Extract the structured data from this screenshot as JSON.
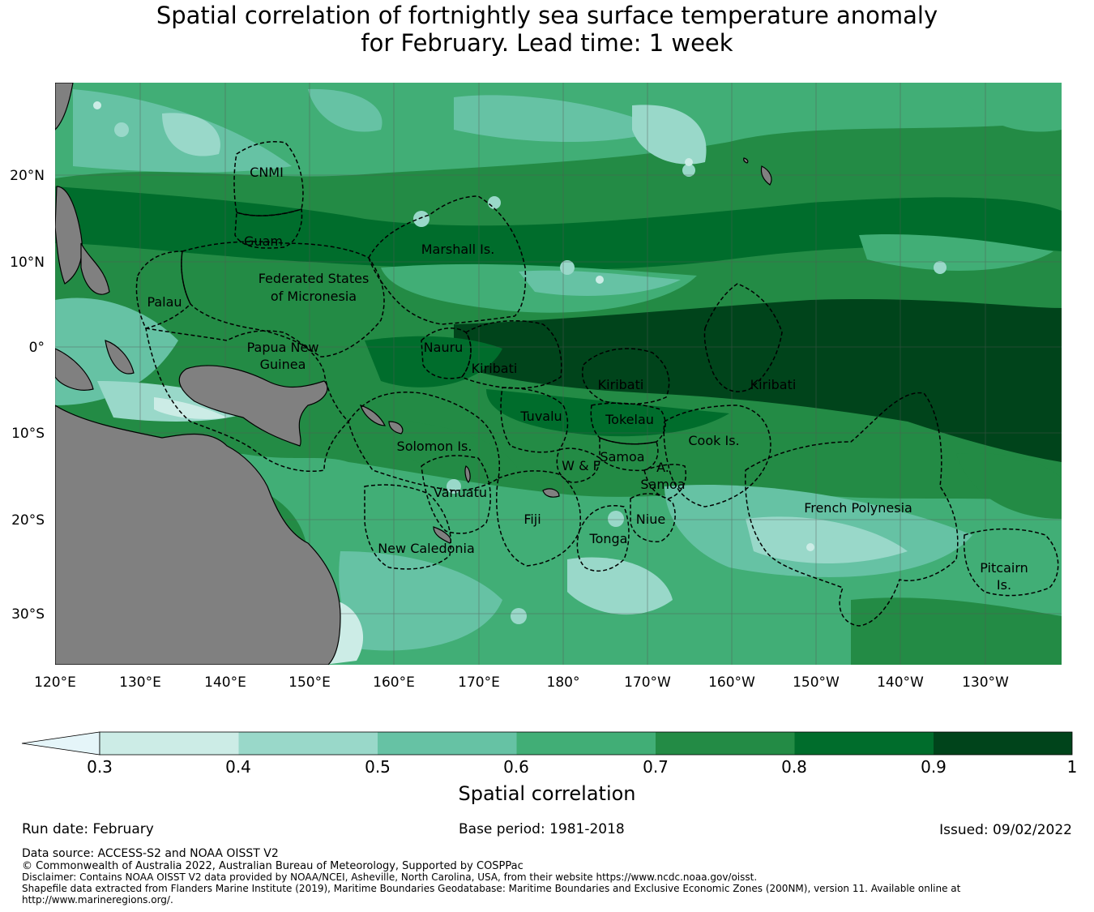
{
  "title": {
    "line1": "Spatial correlation of fortnightly sea surface temperature anomaly",
    "line2": "for February. Lead time: 1 week"
  },
  "map": {
    "lon_labels": [
      "120°E",
      "130°E",
      "140°E",
      "150°E",
      "160°E",
      "170°E",
      "180°",
      "170°W",
      "160°W",
      "150°W",
      "140°W",
      "130°W"
    ],
    "lat_labels": [
      "20°N",
      "10°N",
      "0°",
      "10°S",
      "20°S",
      "30°S"
    ],
    "land_color": "#808080",
    "regions": [
      {
        "id": "cnmi",
        "name": "CNMI"
      },
      {
        "id": "guam",
        "name": "Guam"
      },
      {
        "id": "marshall",
        "name": "Marshall Is."
      },
      {
        "id": "fsm",
        "name": "Federated States of Micronesia",
        "line1": "Federated States",
        "line2": "of Micronesia"
      },
      {
        "id": "palau",
        "name": "Palau"
      },
      {
        "id": "png",
        "name": "Papua New Guinea",
        "line1": "Papua New",
        "line2": "Guinea"
      },
      {
        "id": "nauru",
        "name": "Nauru"
      },
      {
        "id": "kiribati_w",
        "name": "Kiribati"
      },
      {
        "id": "kiribati_c",
        "name": "Kiribati"
      },
      {
        "id": "kiribati_e",
        "name": "Kiribati"
      },
      {
        "id": "tuvalu",
        "name": "Tuvalu"
      },
      {
        "id": "tokelau",
        "name": "Tokelau"
      },
      {
        "id": "solomon",
        "name": "Solomon Is."
      },
      {
        "id": "samoa",
        "name": "Samoa"
      },
      {
        "id": "wf",
        "name": "W & F"
      },
      {
        "id": "asamoa",
        "name": "A. Samoa",
        "line1": "A.",
        "line2": "Samoa"
      },
      {
        "id": "cook",
        "name": "Cook Is."
      },
      {
        "id": "vanuatu",
        "name": "Vanuatu"
      },
      {
        "id": "fiji",
        "name": "Fiji"
      },
      {
        "id": "niue",
        "name": "Niue"
      },
      {
        "id": "tonga",
        "name": "Tonga"
      },
      {
        "id": "frenchpoly",
        "name": "French Polynesia"
      },
      {
        "id": "newcal",
        "name": "New Caledonia"
      },
      {
        "id": "pitcairn",
        "name": "Pitcairn Is.",
        "line1": "Pitcairn",
        "line2": "Is."
      }
    ]
  },
  "colorbar": {
    "label": "Spatial correlation",
    "ticks": [
      "0.3",
      "0.4",
      "0.5",
      "0.6",
      "0.7",
      "0.8",
      "0.9",
      "1"
    ],
    "extend_color": "#e5f5f9",
    "colors": [
      "#ccece6",
      "#99d8c9",
      "#66c2a4",
      "#41ae76",
      "#238b45",
      "#006d2c",
      "#00441b"
    ]
  },
  "footer": {
    "run_date": "Run date: February",
    "base_period": "Base period: 1981-2018",
    "issued": "Issued: 09/02/2022",
    "data_source": "Data source: ACCESS-S2 and NOAA OISST V2",
    "copyright": "© Commonwealth of Australia 2022, Australian Bureau of Meteorology, Supported by COSPPac",
    "disclaimer": "Disclaimer: Contains NOAA OISST V2 data provided by NOAA/NCEI, Asheville, North Carolina, USA, from their website https://www.ncdc.noaa.gov/oisst.",
    "shapefile_1": "Shapefile data extracted from Flanders Marine Institute (2019), Maritime Boundaries Geodatabase: Maritime Boundaries and Exclusive Economic Zones (200NM), version 11. Available online at",
    "shapefile_2": "http://www.marineregions.org/."
  }
}
